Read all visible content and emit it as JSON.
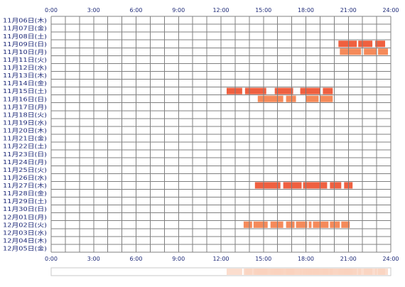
{
  "chart_data": {
    "type": "heatmap",
    "title": "",
    "xlabel": "",
    "ylabel": "",
    "x_ticks": [
      "0:00",
      "3:00",
      "6:00",
      "9:00",
      "12:00",
      "15:00",
      "18:00",
      "21:00",
      "24:00"
    ],
    "x_range_hours": [
      0,
      24
    ],
    "x_tick_step_hours": 3,
    "grid_step_hours": 1,
    "grid": true,
    "days": [
      "11月06日(木)",
      "11月07日(金)",
      "11月08日(土)",
      "11月09日(日)",
      "11月10日(月)",
      "11月11日(火)",
      "11月12日(水)",
      "11月13日(木)",
      "11月14日(金)",
      "11月15日(土)",
      "11月16日(日)",
      "11月17日(月)",
      "11月18日(火)",
      "11月19日(水)",
      "11月20日(木)",
      "11月21日(金)",
      "11月22日(土)",
      "11月23日(日)",
      "11月24日(月)",
      "11月25日(火)",
      "11月26日(水)",
      "11月27日(木)",
      "11月28日(金)",
      "11月29日(土)",
      "11月30日(日)",
      "12月01日(月)",
      "12月02日(火)",
      "12月03日(水)",
      "12月04日(木)",
      "12月05日(金)"
    ],
    "colors": {
      "active": "#ef6040",
      "active_light": "#f58a5a",
      "grid": "#808080",
      "label": "#1e2a78",
      "summary_fill": "#f9d2be",
      "summary_border": "#c8c8c8"
    },
    "activity": [
      {
        "day": "11月09日(日)",
        "segments": [
          [
            20.3,
            21.6
          ],
          [
            21.7,
            22.7
          ],
          [
            22.9,
            23.6
          ]
        ]
      },
      {
        "day": "11月10日(月)",
        "segments": [
          [
            20.4,
            21.9
          ],
          [
            22.1,
            23.0
          ],
          [
            23.1,
            23.8
          ]
        ]
      },
      {
        "day": "11月15日(土)",
        "segments": [
          [
            12.4,
            13.5
          ],
          [
            13.7,
            15.2
          ],
          [
            15.8,
            17.1
          ],
          [
            17.6,
            19.0
          ],
          [
            19.2,
            19.9
          ]
        ]
      },
      {
        "day": "11月16日(日)",
        "segments": [
          [
            14.6,
            16.4
          ],
          [
            16.6,
            17.3
          ],
          [
            18.0,
            18.9
          ],
          [
            19.0,
            19.9
          ]
        ]
      },
      {
        "day": "11月27日(木)",
        "segments": [
          [
            14.4,
            16.2
          ],
          [
            16.4,
            17.7
          ],
          [
            17.8,
            19.5
          ],
          [
            19.7,
            20.5
          ],
          [
            20.7,
            21.3
          ]
        ]
      },
      {
        "day": "12月02日(火)",
        "segments": [
          [
            13.6,
            14.2
          ],
          [
            14.3,
            15.3
          ],
          [
            15.5,
            16.4
          ],
          [
            16.6,
            17.2
          ],
          [
            17.3,
            18.1
          ],
          [
            18.2,
            18.4
          ],
          [
            18.5,
            19.6
          ],
          [
            19.7,
            20.4
          ],
          [
            20.5,
            21.1
          ]
        ]
      }
    ]
  }
}
